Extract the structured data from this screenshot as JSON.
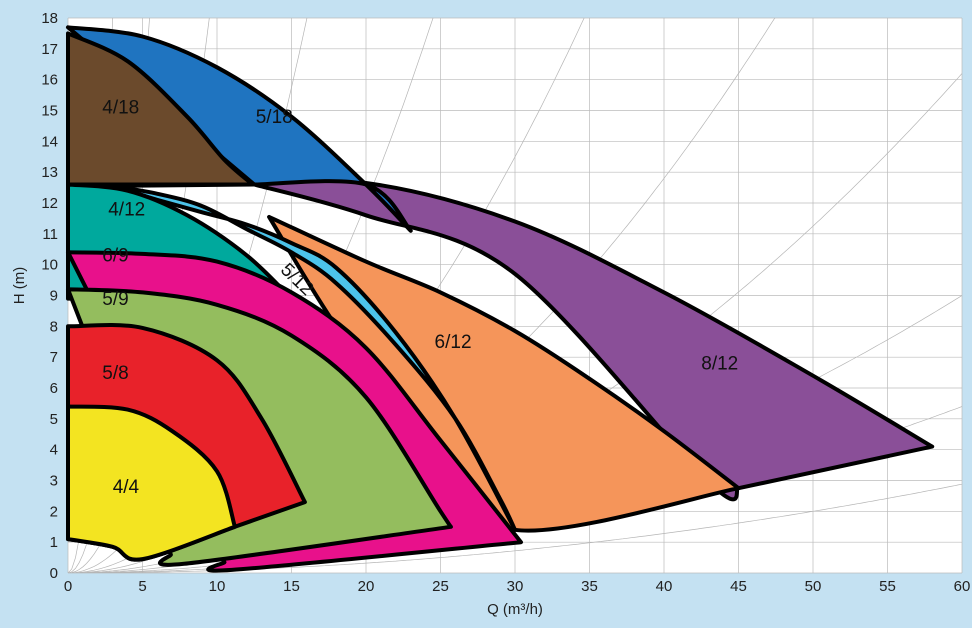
{
  "chart_data": {
    "type": "area",
    "title": "",
    "xlabel": "Q (m³/h)",
    "ylabel": "H (m)",
    "xlim": [
      0,
      60
    ],
    "ylim": [
      0,
      18
    ],
    "x_ticks": [
      0,
      5,
      10,
      15,
      20,
      25,
      30,
      35,
      40,
      45,
      50,
      55,
      60
    ],
    "y_ticks": [
      0,
      1,
      2,
      3,
      4,
      5,
      6,
      7,
      8,
      9,
      10,
      11,
      12,
      13,
      14,
      15,
      16,
      17,
      18
    ],
    "grid": true,
    "colors": {
      "background": "#c4e1f2",
      "plot_background": "#ffffff",
      "grid": "#bbbbbb",
      "outline": "#000000"
    },
    "regions": [
      {
        "name": "8/12",
        "color": "#8a4f98",
        "label_at": [
          42.5,
          6.6
        ],
        "label_rotation": 0,
        "upper": [
          [
            2.5,
            12.55
          ],
          [
            10,
            12.75
          ],
          [
            20,
            12.65
          ],
          [
            30,
            11.4
          ],
          [
            40,
            9.1
          ],
          [
            50,
            6.4
          ],
          [
            58,
            4.1
          ]
        ],
        "lower": [
          [
            45,
            2.75
          ],
          [
            43,
            2.95
          ],
          [
            30,
            9.7
          ],
          [
            20,
            11.6
          ],
          [
            12.5,
            12.6
          ]
        ]
      },
      {
        "name": "5/18",
        "color": "#1f74c0",
        "label_at": [
          12.6,
          14.6
        ],
        "label_rotation": 0,
        "upper": [
          [
            0,
            17.7
          ],
          [
            5,
            17.4
          ],
          [
            10,
            16.4
          ],
          [
            15,
            14.8
          ],
          [
            20,
            12.6
          ],
          [
            23,
            11.1
          ]
        ],
        "lower": [
          [
            23,
            11.1
          ],
          [
            20,
            12.6
          ],
          [
            12.5,
            12.6
          ]
        ]
      },
      {
        "name": "4/18",
        "color": "#6b4a2c",
        "label_at": [
          2.3,
          14.9
        ],
        "label_rotation": 0,
        "upper": [
          [
            0,
            17.5
          ],
          [
            4,
            16.6
          ],
          [
            8,
            14.8
          ],
          [
            10.5,
            13.4
          ],
          [
            12.4,
            12.6
          ]
        ],
        "lower": [
          [
            12.4,
            12.6
          ],
          [
            0,
            12.6
          ]
        ]
      },
      {
        "name": "6/12",
        "color": "#f5955a",
        "label_at": [
          24.6,
          7.3
        ],
        "label_rotation": 0,
        "upper": [
          [
            13.5,
            11.55
          ],
          [
            20,
            10.1
          ],
          [
            25,
            9.1
          ],
          [
            30,
            7.85
          ],
          [
            35,
            6.3
          ],
          [
            40,
            4.6
          ],
          [
            45,
            2.75
          ]
        ],
        "lower": [
          [
            45,
            2.75
          ],
          [
            30,
            1.4
          ],
          [
            24,
            4.1
          ],
          [
            18,
            8.0
          ],
          [
            13.5,
            11.55
          ]
        ]
      },
      {
        "name": "5/12",
        "color": "#4cc3ea",
        "label_at": [
          14.2,
          9.8
        ],
        "label_rotation": 44,
        "upper": [
          [
            0,
            12.6
          ],
          [
            3,
            12.5
          ],
          [
            6,
            12.1
          ],
          [
            9,
            11.7
          ],
          [
            12,
            11.3
          ],
          [
            15,
            10.7
          ],
          [
            18,
            9.9
          ],
          [
            22,
            7.8
          ],
          [
            26,
            5.0
          ],
          [
            30,
            1.4
          ]
        ],
        "lower": [
          [
            30,
            1.4
          ],
          [
            29,
            2.4
          ],
          [
            26,
            5.0
          ],
          [
            22,
            7.4
          ],
          [
            18,
            9.4
          ],
          [
            15,
            10.4
          ],
          [
            12,
            11.15
          ],
          [
            9,
            11.9
          ],
          [
            6,
            12.3
          ],
          [
            3,
            12.55
          ]
        ]
      },
      {
        "name": "4/12",
        "color": "#00a99d",
        "label_at": [
          2.7,
          11.6
        ],
        "label_rotation": 0,
        "upper": [
          [
            0,
            12.6
          ],
          [
            4,
            12.4
          ],
          [
            8,
            11.6
          ],
          [
            12,
            10.3
          ],
          [
            15,
            8.9
          ]
        ],
        "lower": [
          [
            15,
            8.9
          ],
          [
            0,
            8.9
          ]
        ]
      },
      {
        "name": "6/9",
        "color": "#e8118b",
        "label_at": [
          2.3,
          10.1
        ],
        "label_rotation": 0,
        "upper": [
          [
            0,
            10.4
          ],
          [
            5,
            10.35
          ],
          [
            10,
            10.1
          ],
          [
            15,
            9.1
          ],
          [
            20,
            7.3
          ],
          [
            25,
            4.3
          ],
          [
            30.4,
            1.0
          ]
        ],
        "lower": [
          [
            30.4,
            1.0
          ],
          [
            11,
            0.1
          ],
          [
            10.5,
            0.35
          ]
        ]
      },
      {
        "name": "5/9",
        "color": "#94bd5e",
        "label_at": [
          2.3,
          8.7
        ],
        "label_rotation": 0,
        "upper": [
          [
            0,
            9.2
          ],
          [
            5,
            9.1
          ],
          [
            10,
            8.7
          ],
          [
            15,
            7.7
          ],
          [
            20,
            5.7
          ],
          [
            25,
            2.0
          ],
          [
            25.7,
            1.5
          ]
        ],
        "lower": [
          [
            25.7,
            1.5
          ],
          [
            7.8,
            0.3
          ],
          [
            6.9,
            0.6
          ]
        ]
      },
      {
        "name": "5/8",
        "color": "#e8222a",
        "label_at": [
          2.3,
          6.3
        ],
        "label_rotation": 0,
        "upper": [
          [
            0,
            8.0
          ],
          [
            5,
            7.95
          ],
          [
            10,
            6.9
          ],
          [
            13,
            5.0
          ],
          [
            15.9,
            2.3
          ]
        ],
        "lower": [
          [
            15.9,
            2.3
          ],
          [
            11.2,
            1.5
          ],
          [
            5,
            0.45
          ],
          [
            3,
            0.85
          ],
          [
            0,
            1.1
          ]
        ]
      },
      {
        "name": "4/4",
        "color": "#f3e421",
        "label_at": [
          3.0,
          2.6
        ],
        "label_rotation": 0,
        "upper": [
          [
            0,
            5.4
          ],
          [
            4,
            5.3
          ],
          [
            7,
            4.6
          ],
          [
            10,
            3.3
          ],
          [
            11.2,
            1.5
          ]
        ],
        "lower": [
          [
            11.2,
            1.5
          ],
          [
            5,
            0.45
          ],
          [
            3,
            0.85
          ],
          [
            0,
            1.1
          ]
        ]
      }
    ],
    "system_curves": [
      0.0008,
      0.0015,
      0.0025,
      0.0045,
      0.008,
      0.015,
      0.03,
      0.07,
      0.2,
      0.6,
      2.0
    ]
  }
}
